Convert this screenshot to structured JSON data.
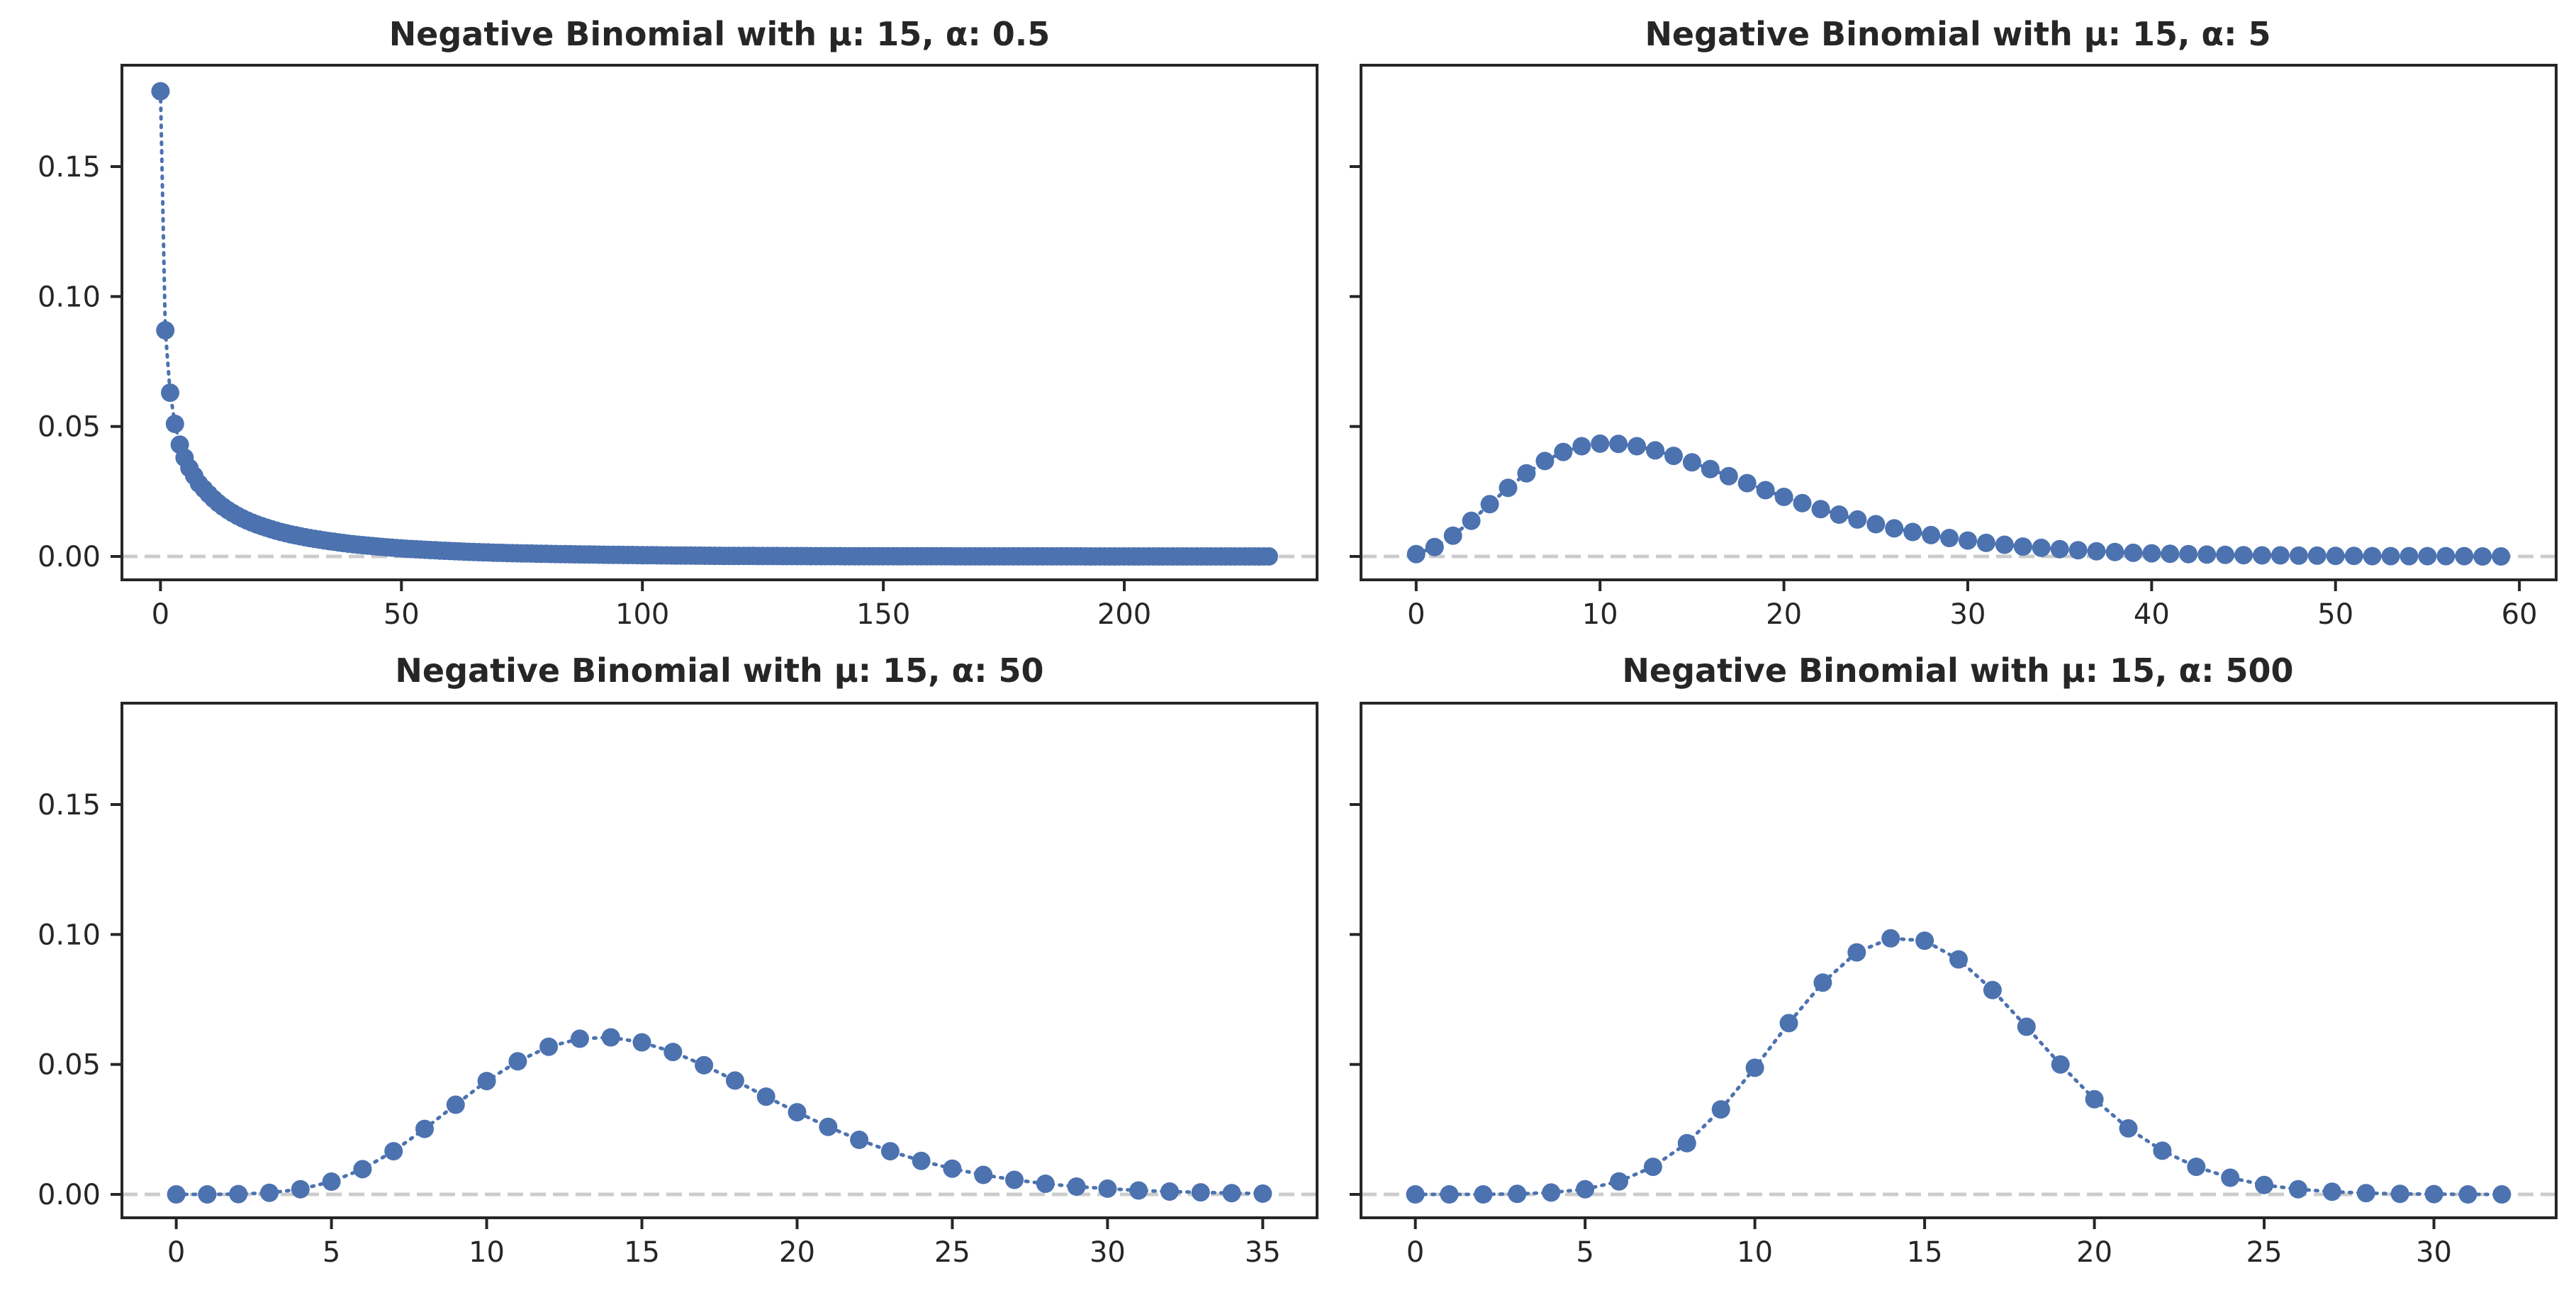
{
  "figure": {
    "background": "#ffffff",
    "marker_color": "#4c72b0",
    "zero_line_color": "#cccccc"
  },
  "chart_data": [
    {
      "type": "scatter",
      "title": "Negative Binomial with μ: 15, α: 0.5",
      "xlabel": "",
      "ylabel": "",
      "connector": "dotted",
      "xlim": [
        -8,
        240
      ],
      "ylim": [
        -0.009,
        0.189
      ],
      "xticks": [
        0,
        50,
        100,
        150,
        200
      ],
      "yticks": [
        "0.00",
        "0.05",
        "0.10",
        "0.15"
      ],
      "x_range": [
        0,
        230
      ],
      "points": [
        [
          0,
          0.179
        ],
        [
          1,
          0.087
        ],
        [
          2,
          0.063
        ],
        [
          3,
          0.051
        ],
        [
          4,
          0.043
        ],
        [
          5,
          0.038
        ],
        [
          6,
          0.034
        ],
        [
          7,
          0.031
        ],
        [
          8,
          0.028
        ],
        [
          9,
          0.026
        ],
        [
          10,
          0.024
        ],
        [
          12,
          0.0205
        ],
        [
          14,
          0.0178
        ],
        [
          16,
          0.0156
        ],
        [
          18,
          0.0138
        ],
        [
          20,
          0.0123
        ],
        [
          25,
          0.0094
        ],
        [
          30,
          0.0074
        ],
        [
          35,
          0.0059
        ],
        [
          40,
          0.0047
        ],
        [
          50,
          0.0031
        ],
        [
          60,
          0.0021
        ],
        [
          70,
          0.0014
        ],
        [
          80,
          0.001
        ],
        [
          90,
          0.0007
        ],
        [
          100,
          0.0005
        ],
        [
          120,
          0.0002
        ],
        [
          140,
          0.0001
        ],
        [
          160,
          5e-05
        ],
        [
          180,
          2e-05
        ],
        [
          200,
          1e-05
        ],
        [
          230,
          0
        ]
      ]
    },
    {
      "type": "scatter",
      "title": "Negative Binomial with μ: 15, α: 5",
      "xlabel": "",
      "ylabel": "",
      "connector": "dotted",
      "xlim": [
        -3,
        62
      ],
      "ylim": [
        -0.009,
        0.189
      ],
      "xticks": [
        0,
        10,
        20,
        30,
        40,
        50,
        60
      ],
      "yticks": [
        "0.00",
        "0.05",
        "0.10",
        "0.15"
      ],
      "x": [
        0,
        1,
        2,
        3,
        4,
        5,
        6,
        7,
        8,
        9,
        10,
        11,
        12,
        13,
        14,
        15,
        16,
        17,
        18,
        19,
        20,
        21,
        22,
        23,
        24,
        25,
        26,
        27,
        28,
        29,
        30,
        31,
        32,
        33,
        34,
        35,
        36,
        37,
        38,
        39,
        40,
        41,
        42,
        43,
        44,
        45,
        46,
        47,
        48,
        49,
        50,
        51,
        52,
        53,
        54,
        55,
        56,
        57,
        58,
        59
      ],
      "y": [
        0.0009,
        0.0036,
        0.008,
        0.0137,
        0.0201,
        0.0264,
        0.032,
        0.0367,
        0.0402,
        0.0424,
        0.0434,
        0.0433,
        0.0424,
        0.0408,
        0.0387,
        0.0362,
        0.0336,
        0.0309,
        0.0282,
        0.0255,
        0.0229,
        0.0205,
        0.0182,
        0.0161,
        0.0142,
        0.0124,
        0.0108,
        0.0094,
        0.0082,
        0.0071,
        0.0061,
        0.0052,
        0.0045,
        0.0038,
        0.0033,
        0.0028,
        0.0024,
        0.002,
        0.0017,
        0.0014,
        0.0012,
        0.001,
        0.0009,
        0.0007,
        0.0006,
        0.0005,
        0.0004,
        0.0004,
        0.0003,
        0.0003,
        0.0002,
        0.0002,
        0.0001,
        0.0001,
        0.0001,
        0.0001,
        0.0001,
        0.0001,
        0,
        0
      ]
    },
    {
      "type": "scatter",
      "title": "Negative Binomial with μ: 15, α: 50",
      "xlabel": "",
      "ylabel": "",
      "connector": "dotted",
      "xlim": [
        -1.75,
        36.75
      ],
      "ylim": [
        -0.009,
        0.189
      ],
      "xticks": [
        0,
        5,
        10,
        15,
        20,
        25,
        30,
        35
      ],
      "yticks": [
        "0.00",
        "0.05",
        "0.10",
        "0.15"
      ],
      "x": [
        0,
        1,
        2,
        3,
        4,
        5,
        6,
        7,
        8,
        9,
        10,
        11,
        12,
        13,
        14,
        15,
        16,
        17,
        18,
        19,
        20,
        21,
        22,
        23,
        24,
        25,
        26,
        27,
        28,
        29,
        30,
        31,
        32,
        33,
        34,
        35
      ],
      "y": [
        0.0,
        0.0,
        0.0001,
        0.0006,
        0.002,
        0.0049,
        0.0097,
        0.0166,
        0.0252,
        0.0345,
        0.0436,
        0.0512,
        0.0568,
        0.0599,
        0.0604,
        0.0585,
        0.0548,
        0.0497,
        0.0438,
        0.0376,
        0.0316,
        0.026,
        0.021,
        0.0166,
        0.0129,
        0.0099,
        0.0075,
        0.0056,
        0.0041,
        0.003,
        0.0022,
        0.0015,
        0.0011,
        0.0008,
        0.0005,
        0.0003
      ]
    },
    {
      "type": "scatter",
      "title": "Negative Binomial with μ: 15, α: 500",
      "xlabel": "",
      "ylabel": "",
      "connector": "dotted",
      "xlim": [
        -1.6,
        33.6
      ],
      "ylim": [
        -0.009,
        0.189
      ],
      "xticks": [
        0,
        5,
        10,
        15,
        20,
        25,
        30
      ],
      "yticks": [
        "0.00",
        "0.05",
        "0.10",
        "0.15"
      ],
      "x": [
        0,
        1,
        2,
        3,
        4,
        5,
        6,
        7,
        8,
        9,
        10,
        11,
        12,
        13,
        14,
        15,
        16,
        17,
        18,
        19,
        20,
        21,
        22,
        23,
        24,
        25,
        26,
        27,
        28,
        29,
        30,
        31,
        32
      ],
      "y": [
        0.0,
        0.0,
        0.0,
        0.0002,
        0.0007,
        0.002,
        0.005,
        0.0106,
        0.0197,
        0.0327,
        0.0487,
        0.0659,
        0.0815,
        0.0931,
        0.0985,
        0.0976,
        0.0904,
        0.0786,
        0.0645,
        0.05,
        0.0366,
        0.0254,
        0.0168,
        0.0106,
        0.0064,
        0.0036,
        0.002,
        0.001,
        0.0005,
        0.0002,
        0.0001,
        0.0,
        0.0
      ]
    }
  ]
}
